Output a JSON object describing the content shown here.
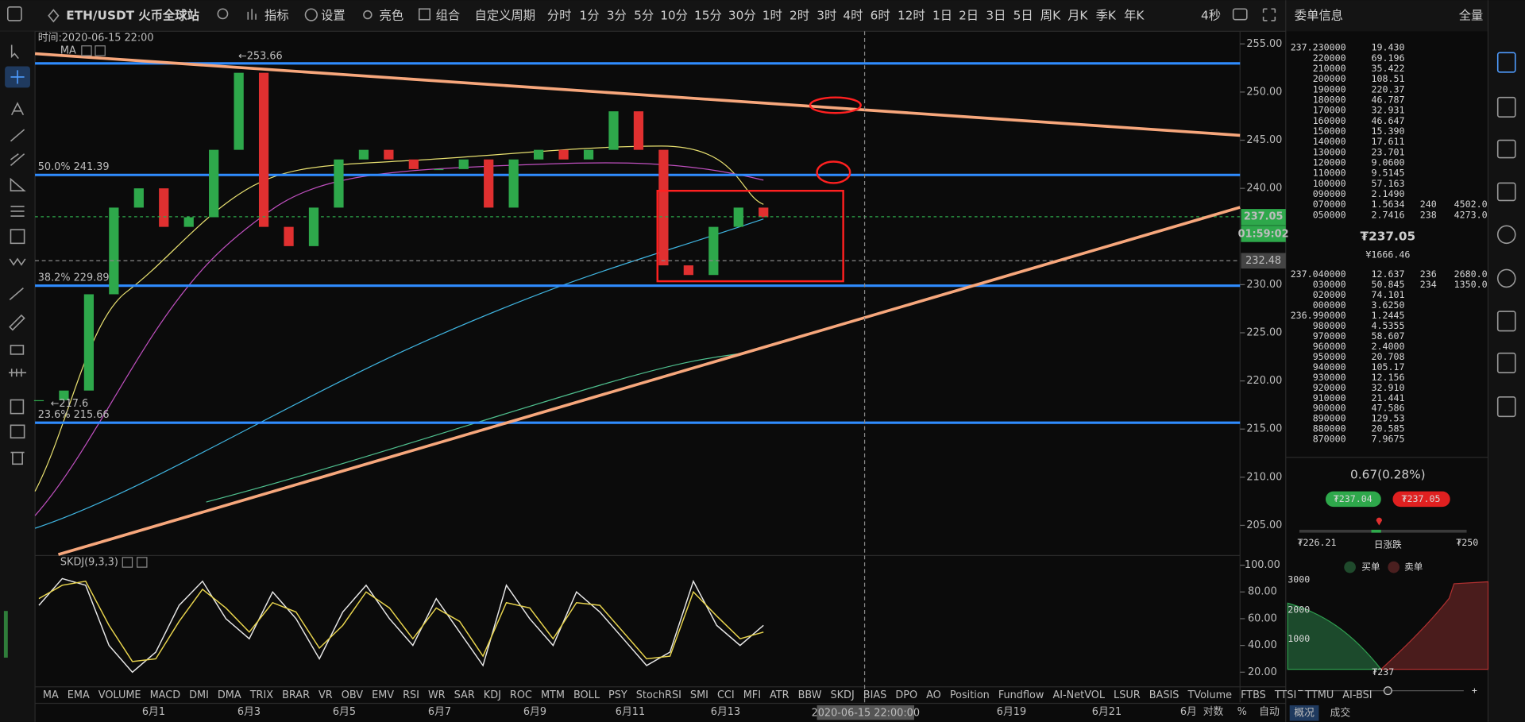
{
  "toolbar": {
    "symbol": "ETH/USDT 火币全球站",
    "menus": [
      "指标",
      "设置",
      "亮色",
      "组合"
    ],
    "custom_period": "自定义周期",
    "periods": [
      "分时",
      "1分",
      "3分",
      "5分",
      "10分",
      "15分",
      "30分",
      "1时",
      "2时",
      "3时",
      "4时",
      "6时",
      "12时",
      "1日",
      "2日",
      "3日",
      "5日",
      "周K",
      "月K",
      "季K",
      "年K"
    ],
    "active_period": "2时",
    "refresh": "4秒"
  },
  "chart": {
    "time_label": "时间:2020-06-15 22:00",
    "ma_label": "MA",
    "high_marker": "←253.66",
    "low_marker": "←217.6",
    "ylim": [
      201.97,
      256.31
    ],
    "yticks": [
      {
        "value": 255,
        "label": "255.00"
      },
      {
        "value": 250,
        "label": "250.00"
      },
      {
        "value": 245,
        "label": "245.00"
      },
      {
        "value": 240,
        "label": "240.00"
      },
      {
        "value": 235,
        "label": "235.00"
      },
      {
        "value": 230,
        "label": "230.00"
      },
      {
        "value": 225,
        "label": "225.00"
      },
      {
        "value": 220,
        "label": "220.00"
      },
      {
        "value": 215,
        "label": "215.00"
      },
      {
        "value": 210,
        "label": "210.00"
      },
      {
        "value": 205,
        "label": "205.00"
      }
    ],
    "fib_levels": [
      {
        "label": "50.0% 241.39",
        "value": 241.39
      },
      {
        "label": "38.2% 229.89",
        "value": 229.89
      },
      {
        "label": "23.6% 215.66",
        "value": 215.66
      }
    ],
    "last_price": {
      "value": 237.05,
      "label": "237.05"
    },
    "countdown": "01:59:02",
    "crosshair_price": {
      "value": 232.48,
      "label": "232.48"
    },
    "closes": [
      218,
      219,
      229,
      238,
      240,
      236,
      237,
      244,
      252,
      236,
      234,
      238,
      243,
      244,
      243,
      242,
      242,
      243,
      238,
      243,
      244,
      243,
      244,
      248,
      244,
      232,
      231,
      236,
      238,
      237
    ]
  },
  "indicator": {
    "name": "SKDJ(9,3,3)",
    "ylim": [
      9.8,
      106.5
    ],
    "yticks": [
      {
        "value": 100,
        "label": "100.00"
      },
      {
        "value": 80,
        "label": "80.00"
      },
      {
        "value": 60,
        "label": "60.00"
      },
      {
        "value": 40,
        "label": "40.00"
      },
      {
        "value": 20,
        "label": "20.00"
      }
    ],
    "K": [
      70,
      90,
      85,
      40,
      20,
      35,
      70,
      88,
      60,
      45,
      80,
      60,
      30,
      65,
      85,
      60,
      40,
      75,
      50,
      25,
      85,
      60,
      40,
      80,
      65,
      45,
      25,
      35,
      88,
      55,
      40,
      55
    ],
    "D": [
      75,
      85,
      88,
      55,
      28,
      30,
      58,
      82,
      68,
      50,
      72,
      65,
      38,
      55,
      80,
      68,
      45,
      68,
      58,
      32,
      72,
      68,
      45,
      72,
      70,
      50,
      30,
      32,
      80,
      62,
      45,
      50
    ]
  },
  "indicator_tabs": [
    "MA",
    "EMA",
    "VOLUME",
    "MACD",
    "DMI",
    "DMA",
    "TRIX",
    "BRAR",
    "VR",
    "OBV",
    "EMV",
    "RSI",
    "WR",
    "SAR",
    "KDJ",
    "ROC",
    "MTM",
    "BOLL",
    "PSY",
    "StochRSI",
    "SMI",
    "CCI",
    "MFI",
    "ATR",
    "BBW",
    "SKDJ",
    "BIAS",
    "DPO",
    "AO",
    "Position",
    "Fundflow",
    "AI-NetVOL",
    "LSUR",
    "BASIS",
    "TVolume",
    "FTBS",
    "TTSI",
    "TTMU",
    "AI-BSI"
  ],
  "active_indicator": "SKDJ",
  "date_axis": {
    "labels": [
      "6月1",
      "6月3",
      "6月5",
      "6月7",
      "6月9",
      "6月11",
      "6月13",
      "6月19",
      "6月21",
      "6月"
    ],
    "crosshair_time": "2020-06-15 22:00:00",
    "log": "对数",
    "percent": "%",
    "auto": "自动"
  },
  "order_book": {
    "title": "委单信息",
    "mode": "全量",
    "asks": [
      [
        "237.230000",
        "19.430"
      ],
      [
        "220000",
        "69.196"
      ],
      [
        "210000",
        "35.422"
      ],
      [
        "200000",
        "108.51"
      ],
      [
        "190000",
        "220.37"
      ],
      [
        "180000",
        "46.787"
      ],
      [
        "170000",
        "32.931"
      ],
      [
        "160000",
        "46.647"
      ],
      [
        "150000",
        "15.390"
      ],
      [
        "140000",
        "17.611"
      ],
      [
        "130000",
        "23.701"
      ],
      [
        "120000",
        "9.0600"
      ],
      [
        "110000",
        "9.5145"
      ],
      [
        "100000",
        "57.163"
      ],
      [
        "090000",
        "2.1490"
      ],
      [
        "070000",
        "1.5634",
        "240",
        "4502.0"
      ],
      [
        "050000",
        "2.7416",
        "238",
        "4273.0"
      ]
    ],
    "last_price": "₮237.05",
    "cny_price": "¥1666.46",
    "bids": [
      [
        "237.040000",
        "12.637",
        "236",
        "2680.0"
      ],
      [
        "030000",
        "50.845",
        "234",
        "1350.0"
      ],
      [
        "020000",
        "74.101"
      ],
      [
        "000000",
        "3.6250"
      ],
      [
        "236.990000",
        "1.2445"
      ],
      [
        "980000",
        "4.5355"
      ],
      [
        "970000",
        "58.607"
      ],
      [
        "960000",
        "2.4000"
      ],
      [
        "950000",
        "20.708"
      ],
      [
        "940000",
        "105.17"
      ],
      [
        "930000",
        "12.156"
      ],
      [
        "920000",
        "32.910"
      ],
      [
        "910000",
        "21.441"
      ],
      [
        "900000",
        "47.586"
      ],
      [
        "890000",
        "129.53"
      ],
      [
        "880000",
        "20.585"
      ],
      [
        "870000",
        "7.9675"
      ]
    ]
  },
  "summary": {
    "change": "0.67(0.28%)",
    "bid": "₮237.04",
    "ask": "₮237.05",
    "low": "₮226.21",
    "range_label": "日涨跌",
    "high": "₮250"
  },
  "depth": {
    "legend": [
      "买单",
      "卖单"
    ],
    "yticks": [
      "3000",
      "2000",
      "1000"
    ],
    "mid": "₮237",
    "zoom_out": "−",
    "zoom_in": "+"
  },
  "tabs": [
    "概况",
    "成交"
  ]
}
